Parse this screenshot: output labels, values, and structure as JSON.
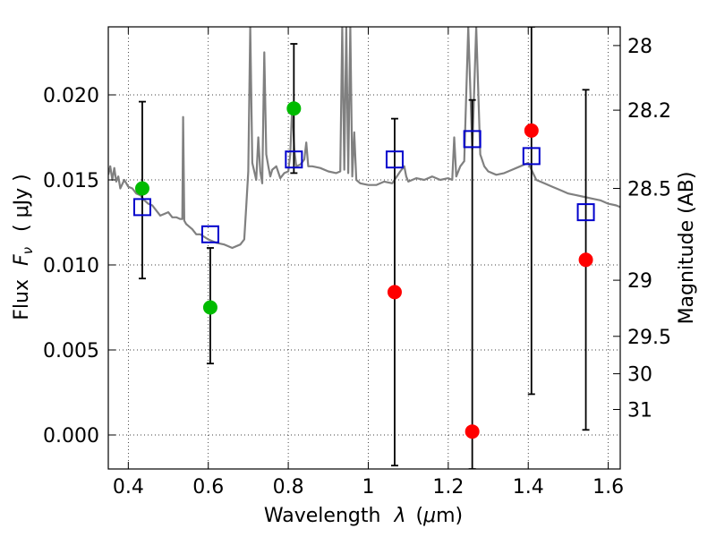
{
  "chart_data": {
    "type": "scatter",
    "xlabel_prefix": "Wavelength",
    "xlabel_symbol": "λ",
    "xlabel_unit_open": "(",
    "xlabel_unit_mu": "μ",
    "xlabel_unit_rest": "m)",
    "ylabel_prefix": "Flux",
    "ylabel_symbol": "F",
    "ylabel_sub": "ν",
    "ylabel_unit": "( μJy )",
    "y2label": "Magnitude (AB)",
    "xlim": [
      0.35,
      1.63
    ],
    "ylim": [
      -0.002,
      0.024
    ],
    "xticks": [
      0.4,
      0.6,
      0.8,
      1.0,
      1.2,
      1.4,
      1.6
    ],
    "xtick_labels": [
      "0.4",
      "0.6",
      "0.8",
      "1",
      "1.2",
      "1.4",
      "1.6"
    ],
    "yticks": [
      0.0,
      0.005,
      0.01,
      0.015,
      0.02
    ],
    "ytick_labels": [
      "0.000",
      "0.005",
      "0.010",
      "0.015",
      "0.020"
    ],
    "y2ticks": [
      {
        "label": "28",
        "flux": 0.0229
      },
      {
        "label": "28.2",
        "flux": 0.0191
      },
      {
        "label": "28.5",
        "flux": 0.0145
      },
      {
        "label": "29",
        "flux": 0.0091
      },
      {
        "label": "29.5",
        "flux": 0.0058
      },
      {
        "label": "30",
        "flux": 0.0036
      },
      {
        "label": "31",
        "flux": 0.0015
      }
    ],
    "grid": true,
    "colors": {
      "detected": "#00bb00",
      "nondetected": "#ff0000",
      "model_box": "#0000cc",
      "sed": "#808080",
      "errorbar": "#000000"
    },
    "series": [
      {
        "name": "detected",
        "marker": "circle",
        "x": [
          0.435,
          0.605,
          0.814
        ],
        "y": [
          0.0145,
          0.0075,
          0.0192
        ]
      },
      {
        "name": "non-detected",
        "marker": "circle",
        "x": [
          1.066,
          1.26,
          1.408,
          1.544
        ],
        "y": [
          0.0084,
          0.0002,
          0.0179,
          0.0103
        ]
      },
      {
        "name": "model photometry",
        "marker": "open-square",
        "x": [
          0.435,
          0.605,
          0.814,
          1.066,
          1.26,
          1.408,
          1.544
        ],
        "y": [
          0.0134,
          0.0118,
          0.0162,
          0.0162,
          0.0174,
          0.0164,
          0.0131
        ]
      }
    ],
    "errorbars": [
      {
        "x": 0.435,
        "low": 0.0092,
        "high": 0.0196
      },
      {
        "x": 0.605,
        "low": 0.0042,
        "high": 0.011
      },
      {
        "x": 0.814,
        "low": 0.0154,
        "high": 0.023
      },
      {
        "x": 1.066,
        "low": -0.0018,
        "high": 0.0186
      },
      {
        "x": 1.26,
        "low": -0.002,
        "high": 0.0197
      },
      {
        "x": 1.408,
        "low": 0.0024,
        "high": 0.024
      },
      {
        "x": 1.544,
        "low": 0.0003,
        "high": 0.0203
      }
    ],
    "sed_model": {
      "x": [
        0.35,
        0.355,
        0.36,
        0.365,
        0.37,
        0.375,
        0.38,
        0.39,
        0.4,
        0.41,
        0.42,
        0.43,
        0.44,
        0.45,
        0.46,
        0.47,
        0.48,
        0.49,
        0.5,
        0.51,
        0.52,
        0.53,
        0.535,
        0.537,
        0.54,
        0.545,
        0.55,
        0.56,
        0.57,
        0.58,
        0.6,
        0.62,
        0.64,
        0.66,
        0.68,
        0.69,
        0.695,
        0.7,
        0.705,
        0.71,
        0.715,
        0.72,
        0.725,
        0.73,
        0.735,
        0.74,
        0.745,
        0.75,
        0.755,
        0.76,
        0.77,
        0.78,
        0.79,
        0.8,
        0.805,
        0.81,
        0.815,
        0.82,
        0.83,
        0.84,
        0.845,
        0.85,
        0.86,
        0.88,
        0.9,
        0.92,
        0.93,
        0.935,
        0.94,
        0.945,
        0.95,
        0.955,
        0.96,
        0.965,
        0.97,
        0.98,
        1.0,
        1.02,
        1.04,
        1.06,
        1.08,
        1.09,
        1.095,
        1.1,
        1.12,
        1.14,
        1.16,
        1.18,
        1.2,
        1.21,
        1.215,
        1.22,
        1.23,
        1.24,
        1.25,
        1.26,
        1.27,
        1.28,
        1.29,
        1.3,
        1.32,
        1.34,
        1.36,
        1.38,
        1.4,
        1.42,
        1.44,
        1.46,
        1.48,
        1.5,
        1.52,
        1.54,
        1.56,
        1.58,
        1.6,
        1.62,
        1.63
      ],
      "y": [
        0.0153,
        0.0158,
        0.015,
        0.0157,
        0.0149,
        0.0152,
        0.0145,
        0.015,
        0.0146,
        0.0145,
        0.0142,
        0.0141,
        0.0138,
        0.0136,
        0.0135,
        0.0132,
        0.0129,
        0.013,
        0.0131,
        0.0128,
        0.0128,
        0.0127,
        0.0127,
        0.0187,
        0.0126,
        0.0124,
        0.0123,
        0.0121,
        0.0118,
        0.0118,
        0.0115,
        0.0113,
        0.0112,
        0.011,
        0.0112,
        0.0115,
        0.0135,
        0.0155,
        0.024,
        0.016,
        0.0155,
        0.015,
        0.0175,
        0.0155,
        0.0148,
        0.0225,
        0.0165,
        0.0158,
        0.0152,
        0.0156,
        0.0158,
        0.0151,
        0.0154,
        0.0155,
        0.0165,
        0.0195,
        0.0168,
        0.0158,
        0.0159,
        0.0162,
        0.0172,
        0.0158,
        0.0158,
        0.0157,
        0.0155,
        0.0154,
        0.0155,
        0.024,
        0.0156,
        0.024,
        0.0154,
        0.024,
        0.0152,
        0.0178,
        0.015,
        0.0148,
        0.0147,
        0.0147,
        0.0149,
        0.0148,
        0.0155,
        0.0158,
        0.0152,
        0.0149,
        0.0151,
        0.015,
        0.0152,
        0.015,
        0.0151,
        0.015,
        0.0175,
        0.0152,
        0.0158,
        0.0161,
        0.024,
        0.0168,
        0.024,
        0.0165,
        0.0158,
        0.0155,
        0.0153,
        0.0154,
        0.0156,
        0.0158,
        0.016,
        0.015,
        0.0148,
        0.0146,
        0.0144,
        0.0142,
        0.0141,
        0.014,
        0.0139,
        0.0138,
        0.0136,
        0.0135,
        0.0134
      ]
    }
  }
}
